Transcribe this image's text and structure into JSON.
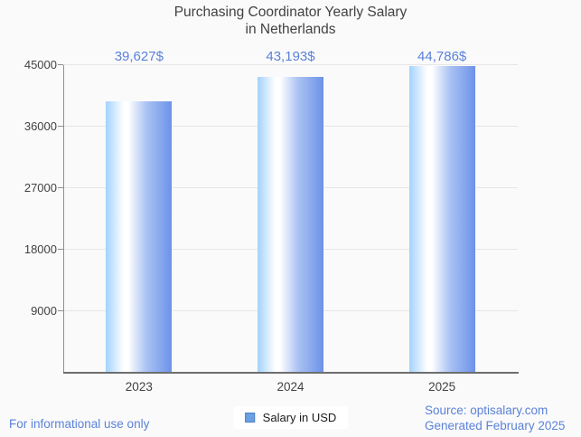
{
  "chart_data": {
    "type": "bar",
    "title_line1": "Purchasing Coordinator Yearly Salary",
    "title_line2": "in Netherlands",
    "categories": [
      "2023",
      "2024",
      "2025"
    ],
    "values": [
      39627,
      43193,
      44786
    ],
    "value_labels": [
      "39,627$",
      "43,193$",
      "44,786$"
    ],
    "series": [
      {
        "name": "Salary in USD",
        "values": [
          39627,
          43193,
          44786
        ]
      }
    ],
    "yticks": [
      45000,
      36000,
      27000,
      18000,
      9000
    ],
    "ylim": [
      0,
      45000
    ],
    "grid": true,
    "legend_position": "bottom",
    "xlabel": "",
    "ylabel": ""
  },
  "legend": {
    "label": "Salary in USD"
  },
  "footer": {
    "disclaimer": "For informational use only",
    "source": "Source: optisalary.com",
    "generated": "Generated February 2025"
  },
  "colors": {
    "background": "#fafafa",
    "title_text": "#424242",
    "axis_text": "#424242",
    "gridline": "#e6e6e6",
    "axis_line": "#8f8f8f",
    "accent_blue": "#5b82d9",
    "bar_light": "#a3d2fe",
    "bar_white": "#ffffff",
    "bar_dark": "#6d92e8",
    "legend_swatch_fill": "#6ca0e4",
    "legend_swatch_border": "#4a7fc1"
  }
}
